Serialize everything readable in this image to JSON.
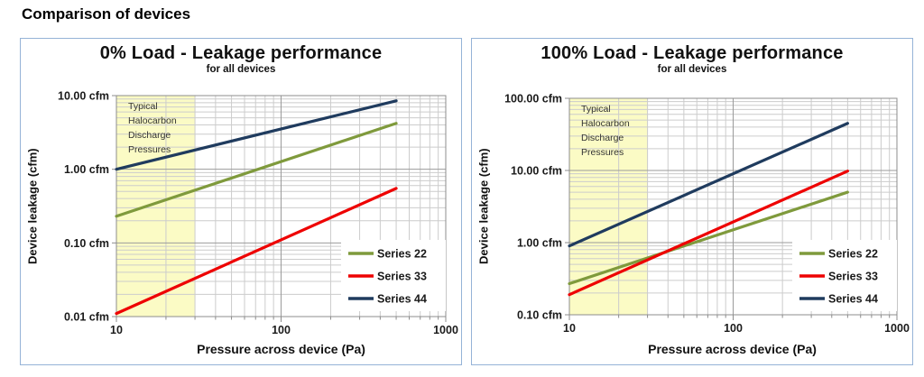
{
  "page": {
    "title": "Comparison of devices"
  },
  "colors": {
    "box_border": "#95b3d7",
    "band_fill": "#fbfbc5",
    "grid_minor": "#cccccc",
    "grid_major": "#9b9b9b",
    "plot_border": "#8c8c8c",
    "series_22": "#7f9a3c",
    "series_33": "#ee0202",
    "series_44": "#1f3b5e"
  },
  "chart_data": [
    {
      "type": "line",
      "title": "0% Load - Leakage performance",
      "subtitle": "for all devices",
      "xlabel": "Pressure across device (Pa)",
      "ylabel": "Device leakage (cfm)",
      "x_scale": "log",
      "y_scale": "log",
      "xlim": [
        10,
        1000
      ],
      "ylim": [
        0.01,
        10
      ],
      "grid": true,
      "x_ticks": [
        {
          "v": 10,
          "label": "10"
        },
        {
          "v": 100,
          "label": "100"
        },
        {
          "v": 1000,
          "label": "1000"
        }
      ],
      "y_ticks": [
        {
          "v": 10,
          "label": "10.00 cfm"
        },
        {
          "v": 1,
          "label": "1.00 cfm"
        },
        {
          "v": 0.1,
          "label": "0.10 cfm"
        },
        {
          "v": 0.01,
          "label": "0.01 cfm"
        }
      ],
      "band": {
        "x_from": 10,
        "x_to": 30,
        "color": "#fbfbc5",
        "lines": [
          "Typical",
          "Halocarbon",
          "Discharge",
          "Pressures"
        ]
      },
      "legend_position": "inside lower right",
      "series": [
        {
          "name": "Series 22",
          "color": "#7f9a3c",
          "points": [
            [
              10,
              0.23
            ],
            [
              500,
              4.2
            ]
          ]
        },
        {
          "name": "Series 33",
          "color": "#ee0202",
          "points": [
            [
              10,
              0.011
            ],
            [
              500,
              0.55
            ]
          ]
        },
        {
          "name": "Series 44",
          "color": "#1f3b5e",
          "points": [
            [
              10,
              1.0
            ],
            [
              500,
              8.5
            ]
          ]
        }
      ]
    },
    {
      "type": "line",
      "title": "100% Load - Leakage performance",
      "subtitle": "for all devices",
      "xlabel": "Pressure across device (Pa)",
      "ylabel": "Device leakage (cfm)",
      "x_scale": "log",
      "y_scale": "log",
      "xlim": [
        10,
        1000
      ],
      "ylim": [
        0.1,
        100
      ],
      "grid": true,
      "x_ticks": [
        {
          "v": 10,
          "label": "10"
        },
        {
          "v": 100,
          "label": "100"
        },
        {
          "v": 1000,
          "label": "1000"
        }
      ],
      "y_ticks": [
        {
          "v": 100,
          "label": "100.00 cfm"
        },
        {
          "v": 10,
          "label": "10.00 cfm"
        },
        {
          "v": 1,
          "label": "1.00 cfm"
        },
        {
          "v": 0.1,
          "label": "0.10 cfm"
        }
      ],
      "band": {
        "x_from": 10,
        "x_to": 30,
        "color": "#fbfbc5",
        "lines": [
          "Typical",
          "Halocarbon",
          "Discharge",
          "Pressures"
        ]
      },
      "legend_position": "inside lower right",
      "series": [
        {
          "name": "Series 22",
          "color": "#7f9a3c",
          "points": [
            [
              10,
              0.27
            ],
            [
              500,
              5.0
            ]
          ]
        },
        {
          "name": "Series 33",
          "color": "#ee0202",
          "points": [
            [
              10,
              0.19
            ],
            [
              500,
              9.8
            ]
          ]
        },
        {
          "name": "Series 44",
          "color": "#1f3b5e",
          "points": [
            [
              10,
              0.9
            ],
            [
              500,
              45
            ]
          ]
        }
      ]
    }
  ]
}
